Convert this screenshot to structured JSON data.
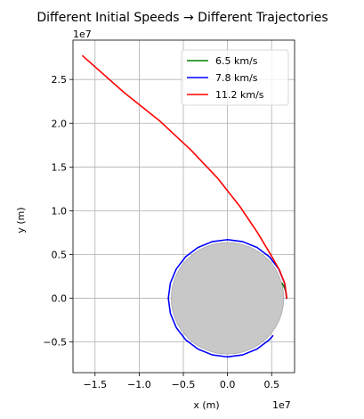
{
  "chart_data": {
    "type": "line",
    "title": "Different Initial Speeds → Different Trajectories",
    "xlabel": "x (m)",
    "ylabel": "y (m)",
    "x_offset_text": "1e7",
    "y_offset_text": "1e7",
    "xlim": [
      -17500000.0,
      7600000.0
    ],
    "ylim": [
      -8500000.0,
      29500000.0
    ],
    "x_ticks": [
      -15000000.0,
      -10000000.0,
      -5000000.0,
      0,
      5000000.0
    ],
    "x_tick_labels": [
      "−1.5",
      "−1.0",
      "−0.5",
      "0.0",
      "0.5"
    ],
    "y_ticks": [
      -5000000.0,
      0,
      5000000.0,
      10000000.0,
      15000000.0,
      20000000.0,
      25000000.0
    ],
    "y_tick_labels": [
      "−0.5",
      "0.0",
      "0.5",
      "1.0",
      "1.5",
      "2.0",
      "2.5"
    ],
    "grid": true,
    "legend_position": "upper-right",
    "earth": {
      "radius": 6371000.0,
      "color": "#c8c8c8"
    },
    "series": [
      {
        "name": "6.5 km/s",
        "color": "#008000",
        "x": [
          6700000.0,
          6680000.0,
          6620000.0,
          6520000.0,
          6380000.0,
          6200000.0
        ],
        "y": [
          0,
          350000.0,
          700000.0,
          1040000.0,
          1380000.0,
          1700000.0
        ]
      },
      {
        "name": "7.8 km/s",
        "color": "#0000ff",
        "x": [
          6700000.0,
          6470000.0,
          5800000.0,
          4740000.0,
          3350000.0,
          1730000.0,
          0,
          -1730000.0,
          -3350000.0,
          -4740000.0,
          -5800000.0,
          -6470000.0,
          -6700000.0,
          -6470000.0,
          -5800000.0,
          -4740000.0,
          -3350000.0,
          -1730000.0,
          0,
          1730000.0,
          3350000.0,
          4740000.0,
          5130000.0
        ],
        "y": [
          0,
          1730000.0,
          3350000.0,
          4740000.0,
          5800000.0,
          6470000.0,
          6700000.0,
          6470000.0,
          5800000.0,
          4740000.0,
          3350000.0,
          1730000.0,
          0,
          -1730000.0,
          -3350000.0,
          -4740000.0,
          -5800000.0,
          -6470000.0,
          -6700000.0,
          -6470000.0,
          -5800000.0,
          -4740000.0,
          -4300000.0
        ]
      },
      {
        "name": "11.2 km/s",
        "color": "#ff0000",
        "x": [
          6700000.0,
          6510000.0,
          5900000.0,
          4890000.0,
          3400000.0,
          1400000.0,
          -1100000.0,
          -4100000.0,
          -7600000.0,
          -11700000.0,
          -16400000.0
        ],
        "y": [
          0,
          1600000.0,
          3200000.0,
          5000000.0,
          7500000.0,
          10500000.0,
          13700000.0,
          16900000.0,
          20200000.0,
          23500000.0,
          27700000.0
        ]
      }
    ]
  }
}
